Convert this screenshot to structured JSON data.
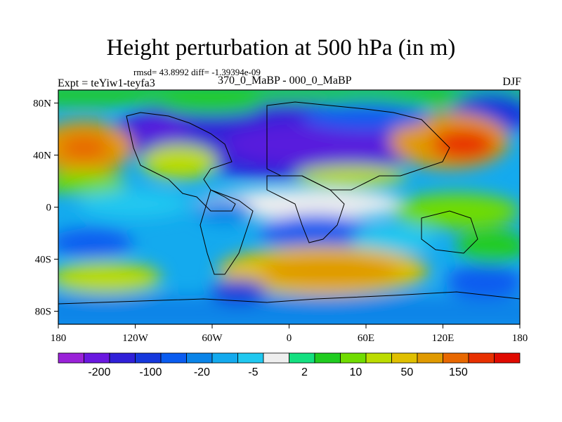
{
  "title": "Height perturbation at 500 hPa (in m)",
  "stats": "rmsd= 43.8992 diff= -1.39394e-09",
  "expt": "Expt = teYiw1-teyfa3",
  "comparison": "370_0_MaBP - 000_0_MaBP",
  "season": "DJF",
  "axes": {
    "x_ticks": [
      "180",
      "120W",
      "60W",
      "0",
      "60E",
      "120E",
      "180"
    ],
    "y_ticks": [
      "80N",
      "40N",
      "0",
      "40S",
      "80S"
    ],
    "lon_range": [
      -180,
      180
    ],
    "lat_range": [
      -90,
      90
    ]
  },
  "colorbar": {
    "colors": [
      "#9a22d8",
      "#6a18e0",
      "#3020d8",
      "#1638dc",
      "#0a5cf0",
      "#0a84e8",
      "#14aaee",
      "#20c8f0",
      "#eeeeee",
      "#14e080",
      "#20cc20",
      "#70dc00",
      "#bcdc00",
      "#e0c000",
      "#e09a00",
      "#e86800",
      "#e83000",
      "#e00a00"
    ],
    "labels": [
      "-200",
      "-100",
      "-20",
      "-5",
      "2",
      "10",
      "50",
      "150"
    ]
  }
}
